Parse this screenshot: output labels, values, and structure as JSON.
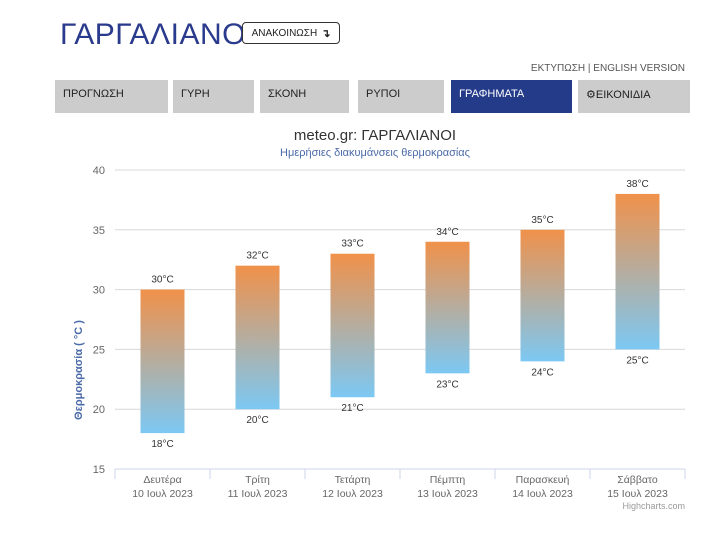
{
  "header": {
    "title": "ΓΑΡΓΑΛΙΑΝΟΙ",
    "announce_label": "ΑΝΑΚΟΙΝΩΣΗ",
    "announce_icon": "↴"
  },
  "toplinks": {
    "print": "ΕΚΤΥΠΩΣΗ",
    "separator": "|",
    "english": "ENGLISH VERSION"
  },
  "nav": {
    "tabs": [
      {
        "label": "ΠΡΟΓΝΩΣΗ",
        "active": false
      },
      {
        "label": "ΓΥΡΗ",
        "active": false
      },
      {
        "label": "ΣΚΟΝΗ",
        "active": false
      },
      {
        "label": "ΡΥΠΟΙ",
        "active": false
      },
      {
        "label": "ΓΡΑΦΗΜΑΤΑ",
        "active": true
      },
      {
        "label": "ΕΙΚΟΝΙΔΙΑ",
        "active": false,
        "icon": "gear-icon"
      }
    ],
    "active_color": "#243b8a",
    "inactive_color": "#cccccc"
  },
  "chart_data": {
    "type": "bar",
    "subtype": "columnrange",
    "title": "meteo.gr: ΓΑΡΓΑΛΙΑΝΟΙ",
    "subtitle": "Ημερήσιες διακυμάνσεις θερμοκρασίας",
    "ylabel": "Θερμοκρασία ( °C )",
    "ylim": [
      15,
      40
    ],
    "yticks": [
      15,
      20,
      25,
      30,
      35,
      40
    ],
    "grid": true,
    "categories": [
      [
        "Δευτέρα",
        "10 Ιουλ 2023"
      ],
      [
        "Τρίτη",
        "11 Ιουλ 2023"
      ],
      [
        "Τετάρτη",
        "12 Ιουλ 2023"
      ],
      [
        "Πέμπτη",
        "13 Ιουλ 2023"
      ],
      [
        "Παρασκευή",
        "14 Ιουλ 2023"
      ],
      [
        "Σάββατο",
        "15 Ιουλ 2023"
      ]
    ],
    "low": [
      18,
      20,
      21,
      23,
      24,
      25
    ],
    "high": [
      30,
      32,
      33,
      34,
      35,
      38
    ],
    "unit": "°C",
    "colors": {
      "top": "#f0914a",
      "bottom": "#7cc8f3"
    },
    "credits": "Highcharts.com"
  }
}
